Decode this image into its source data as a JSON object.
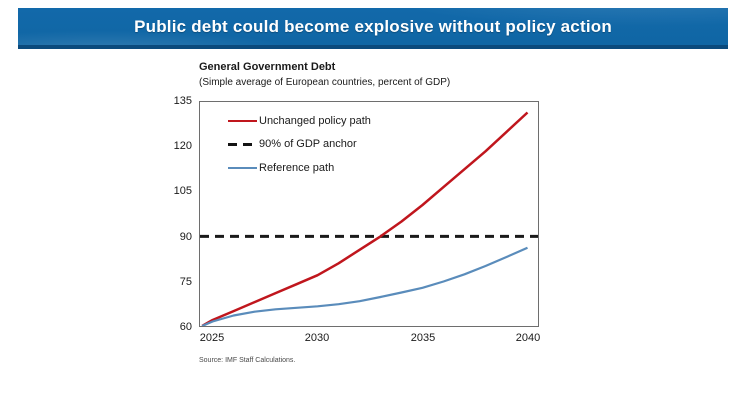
{
  "banner": {
    "title": "Public debt could become explosive without policy action",
    "bg_color": "#1167A7",
    "strip_color": "#0B4A7C"
  },
  "chart": {
    "title": "General Government Debt",
    "subtitle": "(Simple average of European countries, percent of GDP)",
    "source": "Source: IMF Staff Calculations.",
    "y_ticks": [
      "135",
      "120",
      "105",
      "90",
      "75",
      "60"
    ],
    "x_ticks": [
      "2025",
      "2030",
      "2035",
      "2040"
    ]
  },
  "chart_data": {
    "type": "line",
    "title": "General Government Debt",
    "subtitle": "(Simple average of European countries, percent of GDP)",
    "xlabel": "",
    "ylabel": "Percent of GDP",
    "xlim": [
      2024.4,
      2040.5
    ],
    "ylim": [
      60,
      135
    ],
    "y_tick_values": [
      60,
      75,
      90,
      105,
      120,
      135
    ],
    "x_tick_values": [
      2025,
      2030,
      2035,
      2040
    ],
    "grid": false,
    "legend_position": "top-left-inside",
    "x": [
      2024.5,
      2025,
      2026,
      2027,
      2028,
      2029,
      2030,
      2031,
      2032,
      2033,
      2034,
      2035,
      2036,
      2037,
      2038,
      2039,
      2040
    ],
    "series": [
      {
        "name": "Unchanged policy path",
        "color": "#C0161D",
        "style": "solid",
        "stroke_width": 2.5,
        "values": [
          60,
          62,
          65,
          68,
          71,
          74,
          77,
          81,
          85.5,
          90,
          95,
          100.5,
          106.5,
          112.5,
          118.5,
          125,
          131.5
        ]
      },
      {
        "name": "90% of GDP anchor",
        "color": "#1A1A1A",
        "style": "dashed",
        "stroke_width": 3,
        "values": [
          90,
          90,
          90,
          90,
          90,
          90,
          90,
          90,
          90,
          90,
          90,
          90,
          90,
          90,
          90,
          90,
          90
        ]
      },
      {
        "name": "Reference path",
        "color": "#5A8CBB",
        "style": "solid",
        "stroke_width": 2.2,
        "values": [
          60,
          61.5,
          63.5,
          64.8,
          65.6,
          66.1,
          66.6,
          67.3,
          68.3,
          69.7,
          71.2,
          72.8,
          74.9,
          77.3,
          80.1,
          83.1,
          86.2
        ]
      }
    ],
    "source": "Source: IMF Staff Calculations."
  }
}
